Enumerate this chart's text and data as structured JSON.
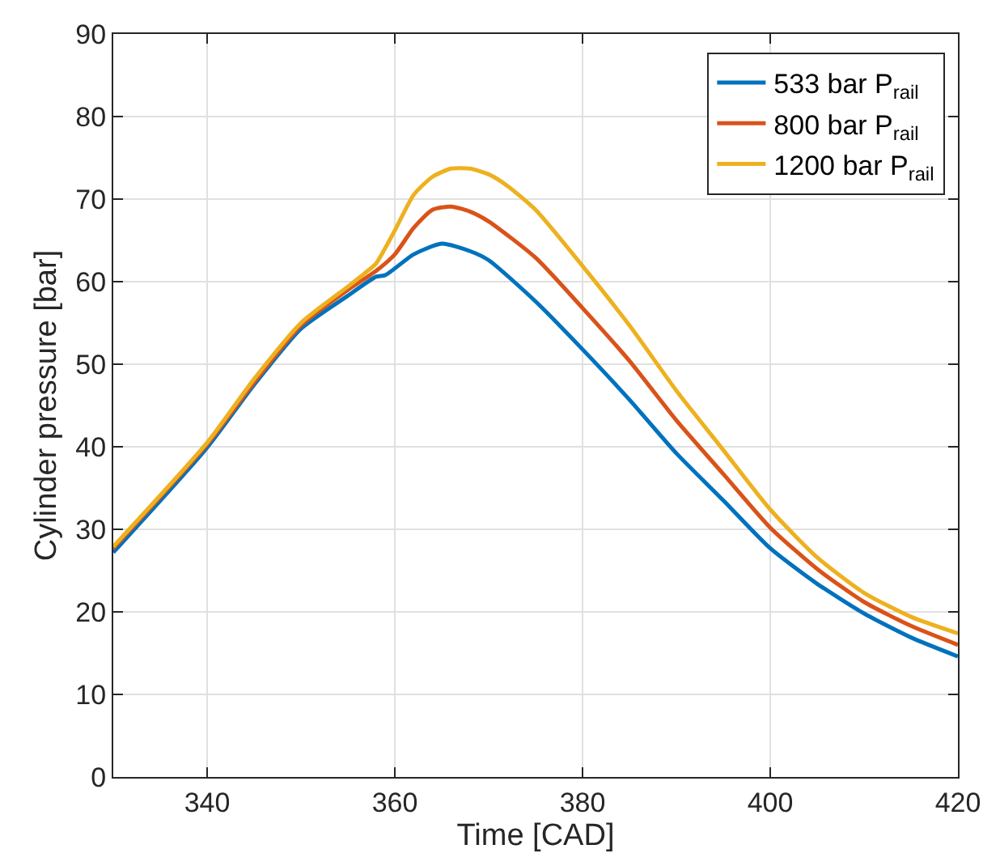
{
  "chart_data": {
    "type": "line",
    "xlabel": "Time [CAD]",
    "ylabel": "Cylinder pressure [bar]",
    "xlim": [
      330,
      420
    ],
    "xticks": [
      340,
      360,
      380,
      400,
      420
    ],
    "ylim": [
      0,
      90
    ],
    "yticks": [
      0,
      10,
      20,
      30,
      40,
      50,
      60,
      70,
      80,
      90
    ],
    "grid": true,
    "legend": "top right",
    "line_style": "solid",
    "marker": "none",
    "series": [
      {
        "name": "533 bar P$_{rail}$",
        "color": "#0072bd",
        "x": [
          330,
          340,
          345,
          350,
          355,
          358,
          359,
          362,
          365,
          368,
          370,
          375,
          380,
          385,
          390,
          395,
          400,
          405,
          410,
          415,
          420
        ],
        "values": [
          27.2,
          39.9,
          47.5,
          54.3,
          58.3,
          60.6,
          60.8,
          63.3,
          64.6,
          63.7,
          62.6,
          57.6,
          51.8,
          45.7,
          39.2,
          33.5,
          27.7,
          23.4,
          19.8,
          16.9,
          14.6
        ]
      },
      {
        "name": "800 bar P$_{rail}$",
        "color": "#d95319",
        "x": [
          330,
          340,
          345,
          350,
          355,
          358,
          360,
          362,
          364,
          366,
          368,
          370,
          375,
          380,
          385,
          390,
          395,
          400,
          405,
          410,
          415,
          420
        ],
        "values": [
          27.7,
          40.3,
          47.8,
          54.7,
          59.0,
          61.3,
          63.3,
          66.5,
          68.7,
          69.1,
          68.5,
          67.3,
          62.9,
          56.8,
          50.4,
          43.2,
          36.7,
          30.2,
          25.2,
          21.2,
          18.3,
          16.0
        ]
      },
      {
        "name": "1200 bar P$_{rail}$",
        "color": "#edb120",
        "x": [
          330,
          340,
          345,
          350,
          355,
          357,
          358,
          360,
          362,
          364,
          366,
          368,
          370,
          372,
          375,
          380,
          385,
          390,
          395,
          400,
          405,
          410,
          415,
          420
        ],
        "values": [
          27.9,
          40.5,
          48.2,
          55.0,
          59.4,
          61.2,
          62.2,
          66.2,
          70.5,
          72.7,
          73.7,
          73.7,
          73.0,
          71.6,
          68.7,
          61.9,
          54.7,
          46.8,
          39.6,
          32.4,
          26.6,
          22.3,
          19.4,
          17.4
        ]
      }
    ]
  }
}
